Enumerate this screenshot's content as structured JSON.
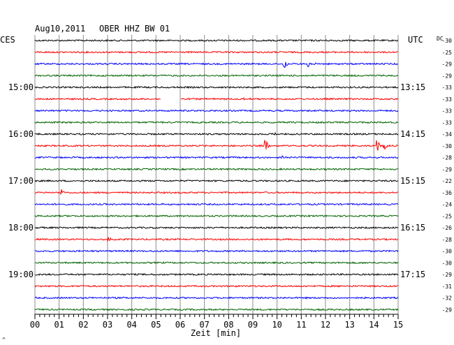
{
  "header": {
    "date": "Aug10,2011",
    "station": "OBER HHZ BW 01",
    "left_zone": "CES",
    "right_zone": "UTC",
    "dc_label": "DC"
  },
  "footer": {
    "xlabel": "Zeit [min]",
    "corner_mark": "^"
  },
  "chart_data": {
    "type": "line",
    "title": "Aug10,2011   OBER HHZ BW 01",
    "xlabel": "Zeit [min]",
    "xlim": [
      0,
      15
    ],
    "x_ticks": [
      "00",
      "01",
      "02",
      "03",
      "04",
      "05",
      "06",
      "07",
      "08",
      "09",
      "10",
      "11",
      "12",
      "13",
      "14",
      "15"
    ],
    "grid": true,
    "trace_colors": [
      "#000000",
      "#ff0000",
      "#0000ff",
      "#006400"
    ],
    "left_time_labels": [
      {
        "trace": 4,
        "label": "15:00"
      },
      {
        "trace": 8,
        "label": "16:00"
      },
      {
        "trace": 12,
        "label": "17:00"
      },
      {
        "trace": 16,
        "label": "18:00"
      },
      {
        "trace": 20,
        "label": "19:00"
      }
    ],
    "right_time_labels": [
      {
        "trace": 4,
        "label": "13:15"
      },
      {
        "trace": 8,
        "label": "14:15"
      },
      {
        "trace": 12,
        "label": "15:15"
      },
      {
        "trace": 16,
        "label": "16:15"
      },
      {
        "trace": 20,
        "label": "17:15"
      }
    ],
    "dc_offsets": [
      -30,
      -25,
      -29,
      -29,
      -33,
      -33,
      -33,
      -33,
      -34,
      -30,
      -28,
      -29,
      -22,
      -36,
      -24,
      -25,
      -26,
      -28,
      -30,
      -30,
      -29,
      -31,
      -32,
      -29
    ],
    "events": [
      {
        "trace": 2,
        "minute": 10.3,
        "amp": 9
      },
      {
        "trace": 2,
        "minute": 11.3,
        "amp": 7
      },
      {
        "trace": 5,
        "minute": 8.6,
        "amp": 3
      },
      {
        "trace": 8,
        "minute": 9.9,
        "amp": 3
      },
      {
        "trace": 9,
        "minute": 9.5,
        "amp": 14
      },
      {
        "trace": 9,
        "minute": 14.1,
        "amp": 12
      },
      {
        "trace": 9,
        "minute": 14.4,
        "amp": 10
      },
      {
        "trace": 10,
        "minute": 10.2,
        "amp": 3
      },
      {
        "trace": 13,
        "minute": 1.1,
        "amp": 5
      },
      {
        "trace": 17,
        "minute": 3.0,
        "amp": 5
      }
    ],
    "gaps": [
      {
        "trace": 5,
        "start": 5.2,
        "end": 6.0
      }
    ]
  }
}
